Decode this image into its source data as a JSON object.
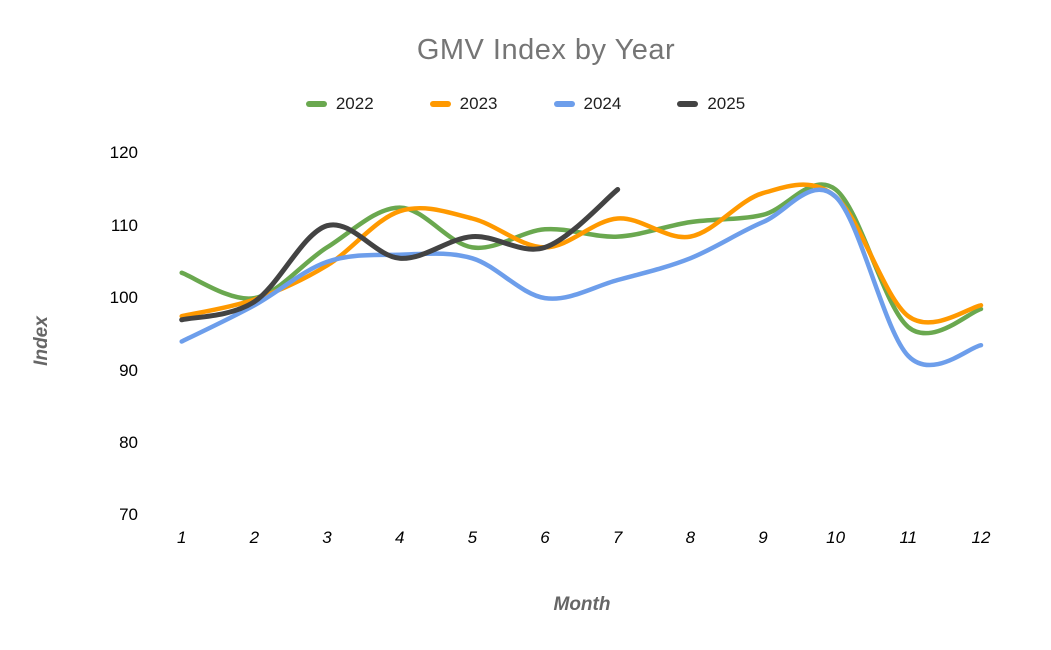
{
  "chart_data": {
    "type": "line",
    "title": "GMV Index by Year",
    "xlabel": "Month",
    "ylabel": "Index",
    "x": [
      1,
      2,
      3,
      4,
      5,
      6,
      7,
      8,
      9,
      10,
      11,
      12
    ],
    "yticks": [
      70,
      80,
      90,
      100,
      110,
      120
    ],
    "ylim": [
      70,
      120
    ],
    "xlim": [
      1,
      12
    ],
    "grid": false,
    "axes_lines": false,
    "line_style": "smooth",
    "legend_position": "top",
    "title_color": "#757575",
    "axis_title_color": "#666666",
    "tick_label_color": "#000000",
    "background_color": "#ffffff",
    "series": [
      {
        "name": "2022",
        "color": "#6aa84f",
        "values": [
          103.5,
          100,
          107,
          112.5,
          107,
          109.5,
          108.5,
          110.5,
          111.5,
          115,
          96,
          98.5
        ]
      },
      {
        "name": "2023",
        "color": "#ff9900",
        "values": [
          97.5,
          99.8,
          104.5,
          112,
          111,
          107,
          111,
          108.5,
          114.5,
          114,
          97.5,
          99
        ]
      },
      {
        "name": "2024",
        "color": "#6d9eeb",
        "values": [
          94,
          99,
          105,
          106,
          105.5,
          100,
          102.5,
          105.5,
          110.5,
          114,
          92,
          93.5
        ]
      },
      {
        "name": "2025",
        "color": "#434343",
        "values": [
          97,
          99.5,
          110,
          105.5,
          108.5,
          107,
          115
        ]
      }
    ]
  }
}
